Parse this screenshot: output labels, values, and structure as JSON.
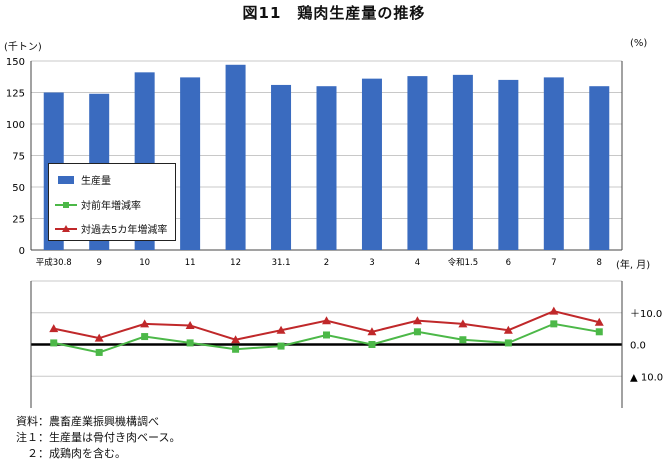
{
  "title": "図11　鶏肉生産量の推移",
  "units": {
    "left": "(千トン)",
    "right": "(%)",
    "x": "(年, 月)"
  },
  "colors": {
    "production": "#3A6BBF",
    "yoy": "#4CB848",
    "five_year": "#C0282A"
  },
  "chart_data": [
    {
      "type": "bar",
      "categories": [
        "平成30.8",
        "9",
        "10",
        "11",
        "12",
        "31.1",
        "2",
        "3",
        "4",
        "令和1.5",
        "6",
        "7",
        "8"
      ],
      "series": [
        {
          "name": "生産量",
          "values": [
            125,
            124,
            141,
            137,
            147,
            131,
            130,
            136,
            138,
            139,
            135,
            137,
            130
          ]
        }
      ],
      "ylim": [
        0,
        150
      ],
      "yticks": [
        0,
        25,
        50,
        75,
        100,
        125,
        150
      ],
      "ylabel": "(千トン)",
      "xlabel": "(年, 月)",
      "grid": true,
      "legend_placement": "bottom-left"
    },
    {
      "type": "line",
      "categories": [
        "平成30.8",
        "9",
        "10",
        "11",
        "12",
        "31.1",
        "2",
        "3",
        "4",
        "令和1.5",
        "6",
        "7",
        "8"
      ],
      "series": [
        {
          "name": "対前年増減率",
          "values": [
            0.5,
            -2.5,
            2.5,
            0.5,
            -1.5,
            -0.5,
            3.0,
            0.0,
            4.0,
            1.5,
            0.5,
            6.5,
            4.0
          ]
        },
        {
          "name": "対過去5カ年増減率",
          "values": [
            5.0,
            2.0,
            6.5,
            6.0,
            1.5,
            4.5,
            7.5,
            4.0,
            7.5,
            6.5,
            4.5,
            10.5,
            7.0
          ]
        }
      ],
      "ylim": [
        -20,
        20
      ],
      "yticks": [
        -10,
        0,
        10
      ],
      "ytick_labels": [
        "▲ 10.0",
        "0.0",
        "＋10.0"
      ],
      "ylabel": "(%)",
      "grid": true
    }
  ],
  "notes": [
    "資料：農畜産業振興機構調べ",
    "注１：生産量は骨付き肉ベース。",
    "　２：成鶏肉を含む。"
  ]
}
